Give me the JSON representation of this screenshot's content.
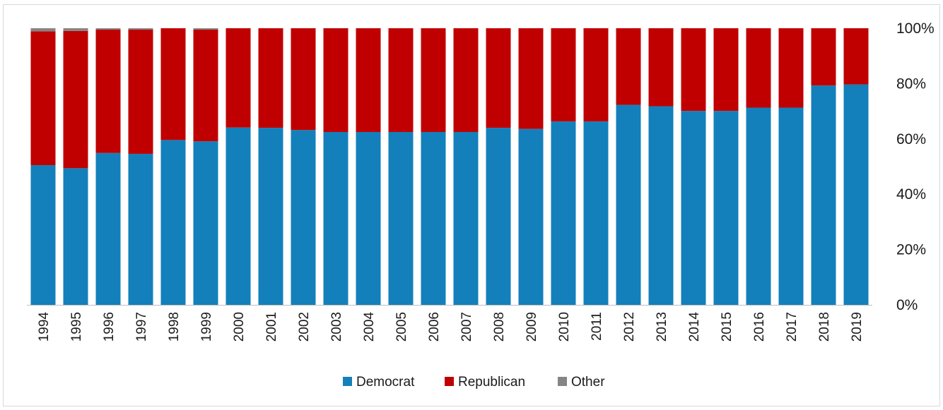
{
  "chart_data": {
    "type": "bar",
    "stacked": true,
    "normalized": true,
    "categories": [
      "1994",
      "1995",
      "1996",
      "1997",
      "1998",
      "1999",
      "2000",
      "2001",
      "2002",
      "2003",
      "2004",
      "2005",
      "2006",
      "2007",
      "2008",
      "2009",
      "2010",
      "2011",
      "2012",
      "2013",
      "2014",
      "2015",
      "2016",
      "2017",
      "2018",
      "2019"
    ],
    "series": [
      {
        "name": "Democrat",
        "color": "#1380bb",
        "values": [
          50.5,
          49.4,
          54.9,
          54.6,
          59.6,
          59.1,
          64.1,
          64.0,
          63.2,
          62.5,
          62.5,
          62.5,
          62.5,
          62.5,
          64.0,
          63.6,
          66.3,
          66.3,
          72.3,
          71.8,
          70.1,
          70.1,
          71.3,
          71.3,
          79.3,
          79.7
        ]
      },
      {
        "name": "Republican",
        "color": "#c00000",
        "values": [
          48.4,
          49.6,
          44.6,
          44.9,
          40.4,
          40.4,
          35.9,
          36.0,
          36.8,
          37.5,
          37.5,
          37.5,
          37.5,
          37.5,
          36.0,
          36.4,
          33.7,
          33.7,
          27.7,
          28.2,
          29.9,
          29.9,
          28.7,
          28.7,
          20.7,
          20.3
        ]
      },
      {
        "name": "Other",
        "color": "#858585",
        "values": [
          1.1,
          1.0,
          0.5,
          0.5,
          0.0,
          0.5,
          0.0,
          0.0,
          0.0,
          0.0,
          0.0,
          0.0,
          0.0,
          0.0,
          0.0,
          0.0,
          0.0,
          0.0,
          0.0,
          0.0,
          0.0,
          0.0,
          0.0,
          0.0,
          0.0,
          0.0
        ]
      }
    ],
    "ylim": [
      0,
      100
    ],
    "yticks": [
      "0%",
      "20%",
      "40%",
      "60%",
      "80%",
      "100%"
    ],
    "ytick_values": [
      0,
      20,
      40,
      60,
      80,
      100
    ],
    "y_axis_side": "right",
    "grid": false,
    "legend_position": "bottom",
    "title": "",
    "xlabel": "",
    "ylabel": ""
  }
}
